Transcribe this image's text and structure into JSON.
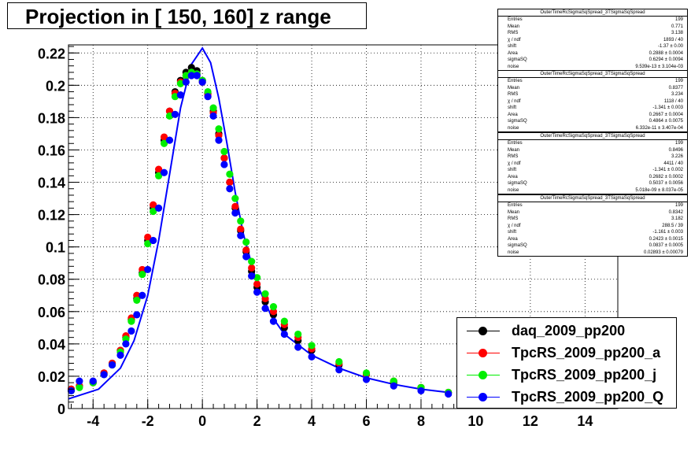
{
  "title": "Projection in [ 150, 160] z range",
  "chart_data": {
    "type": "scatter",
    "title": "Projection in [ 150, 160] z range",
    "xlabel": "",
    "ylabel": "",
    "xlim": [
      -4.9,
      15.2
    ],
    "ylim": [
      0,
      0.225
    ],
    "x_ticks": [
      -4,
      -2,
      0,
      2,
      4,
      6,
      8,
      10,
      12,
      14
    ],
    "y_ticks": [
      0,
      0.02,
      0.04,
      0.06,
      0.08,
      0.1,
      0.12,
      0.14,
      0.16,
      0.18,
      0.2,
      0.22
    ],
    "y_tick_labels": [
      "0",
      "0.02",
      "0.04",
      "0.06",
      "0.08",
      "0.1",
      "0.12",
      "0.14",
      "0.16",
      "0.18",
      "0.2",
      "0.22"
    ],
    "grid": true,
    "legend_position": "bottom-right",
    "series": [
      {
        "name": "daq_2009_pp200",
        "color": "#000000",
        "points": [
          [
            -4.8,
            0.012
          ],
          [
            -4.5,
            0.014
          ],
          [
            -4.0,
            0.016
          ],
          [
            -3.6,
            0.022
          ],
          [
            -3.3,
            0.028
          ],
          [
            -3.0,
            0.036
          ],
          [
            -2.8,
            0.044
          ],
          [
            -2.6,
            0.055
          ],
          [
            -2.4,
            0.068
          ],
          [
            -2.2,
            0.084
          ],
          [
            -2.0,
            0.104
          ],
          [
            -1.8,
            0.124
          ],
          [
            -1.6,
            0.146
          ],
          [
            -1.4,
            0.166
          ],
          [
            -1.2,
            0.184
          ],
          [
            -1.0,
            0.196
          ],
          [
            -0.8,
            0.203
          ],
          [
            -0.6,
            0.208
          ],
          [
            -0.4,
            0.211
          ],
          [
            -0.2,
            0.209
          ],
          [
            0.0,
            0.203
          ],
          [
            0.2,
            0.195
          ],
          [
            0.4,
            0.184
          ],
          [
            0.6,
            0.17
          ],
          [
            0.8,
            0.155
          ],
          [
            1.0,
            0.14
          ],
          [
            1.2,
            0.124
          ],
          [
            1.4,
            0.11
          ],
          [
            1.6,
            0.097
          ],
          [
            1.8,
            0.085
          ],
          [
            2.0,
            0.075
          ],
          [
            2.3,
            0.066
          ],
          [
            2.6,
            0.058
          ],
          [
            3.0,
            0.05
          ],
          [
            3.5,
            0.042
          ],
          [
            4.0,
            0.036
          ],
          [
            5.0,
            0.027
          ],
          [
            6.0,
            0.021
          ],
          [
            7.0,
            0.016
          ],
          [
            8.0,
            0.013
          ],
          [
            9.0,
            0.01
          ]
        ]
      },
      {
        "name": "TpcRS_2009_pp200_a",
        "color": "#ff0000",
        "points": [
          [
            -4.8,
            0.012
          ],
          [
            -4.5,
            0.014
          ],
          [
            -4.0,
            0.016
          ],
          [
            -3.6,
            0.022
          ],
          [
            -3.3,
            0.028
          ],
          [
            -3.0,
            0.036
          ],
          [
            -2.8,
            0.045
          ],
          [
            -2.6,
            0.056
          ],
          [
            -2.4,
            0.07
          ],
          [
            -2.2,
            0.086
          ],
          [
            -2.0,
            0.106
          ],
          [
            -1.8,
            0.126
          ],
          [
            -1.6,
            0.148
          ],
          [
            -1.4,
            0.168
          ],
          [
            -1.2,
            0.184
          ],
          [
            -1.0,
            0.195
          ],
          [
            -0.8,
            0.202
          ],
          [
            -0.6,
            0.206
          ],
          [
            -0.4,
            0.208
          ],
          [
            -0.2,
            0.207
          ],
          [
            0.0,
            0.202
          ],
          [
            0.2,
            0.194
          ],
          [
            0.4,
            0.183
          ],
          [
            0.6,
            0.169
          ],
          [
            0.8,
            0.155
          ],
          [
            1.0,
            0.14
          ],
          [
            1.2,
            0.125
          ],
          [
            1.4,
            0.111
          ],
          [
            1.6,
            0.098
          ],
          [
            1.8,
            0.087
          ],
          [
            2.0,
            0.077
          ],
          [
            2.3,
            0.068
          ],
          [
            2.6,
            0.06
          ],
          [
            3.0,
            0.052
          ],
          [
            3.5,
            0.044
          ],
          [
            4.0,
            0.037
          ],
          [
            5.0,
            0.028
          ],
          [
            6.0,
            0.021
          ],
          [
            7.0,
            0.017
          ],
          [
            8.0,
            0.013
          ],
          [
            9.0,
            0.01
          ]
        ]
      },
      {
        "name": "TpcRS_2009_pp200_j",
        "color": "#00ee00",
        "points": [
          [
            -4.8,
            0.011
          ],
          [
            -4.5,
            0.013
          ],
          [
            -4.0,
            0.016
          ],
          [
            -3.6,
            0.021
          ],
          [
            -3.3,
            0.027
          ],
          [
            -3.0,
            0.035
          ],
          [
            -2.8,
            0.043
          ],
          [
            -2.6,
            0.054
          ],
          [
            -2.4,
            0.067
          ],
          [
            -2.2,
            0.083
          ],
          [
            -2.0,
            0.102
          ],
          [
            -1.8,
            0.122
          ],
          [
            -1.6,
            0.144
          ],
          [
            -1.4,
            0.164
          ],
          [
            -1.2,
            0.181
          ],
          [
            -1.0,
            0.193
          ],
          [
            -0.8,
            0.201
          ],
          [
            -0.6,
            0.206
          ],
          [
            -0.4,
            0.208
          ],
          [
            -0.2,
            0.207
          ],
          [
            0.0,
            0.203
          ],
          [
            0.2,
            0.196
          ],
          [
            0.4,
            0.186
          ],
          [
            0.6,
            0.173
          ],
          [
            0.8,
            0.159
          ],
          [
            1.0,
            0.145
          ],
          [
            1.2,
            0.13
          ],
          [
            1.4,
            0.116
          ],
          [
            1.6,
            0.103
          ],
          [
            1.8,
            0.091
          ],
          [
            2.0,
            0.081
          ],
          [
            2.3,
            0.071
          ],
          [
            2.6,
            0.063
          ],
          [
            3.0,
            0.054
          ],
          [
            3.5,
            0.046
          ],
          [
            4.0,
            0.039
          ],
          [
            5.0,
            0.029
          ],
          [
            6.0,
            0.022
          ],
          [
            7.0,
            0.017
          ],
          [
            8.0,
            0.013
          ],
          [
            9.0,
            0.01
          ]
        ]
      },
      {
        "name": "TpcRS_2009_pp200_Q",
        "color": "#0000ff",
        "points": [
          [
            -4.8,
            0.011
          ],
          [
            -4.5,
            0.017
          ],
          [
            -4.0,
            0.017
          ],
          [
            -3.6,
            0.021
          ],
          [
            -3.3,
            0.027
          ],
          [
            -3.0,
            0.033
          ],
          [
            -2.8,
            0.04
          ],
          [
            -2.6,
            0.048
          ],
          [
            -2.4,
            0.058
          ],
          [
            -2.2,
            0.07
          ],
          [
            -2.0,
            0.086
          ],
          [
            -1.8,
            0.104
          ],
          [
            -1.6,
            0.124
          ],
          [
            -1.4,
            0.146
          ],
          [
            -1.2,
            0.166
          ],
          [
            -1.0,
            0.182
          ],
          [
            -0.8,
            0.194
          ],
          [
            -0.6,
            0.202
          ],
          [
            -0.4,
            0.206
          ],
          [
            -0.2,
            0.206
          ],
          [
            0.0,
            0.202
          ],
          [
            0.2,
            0.193
          ],
          [
            0.4,
            0.181
          ],
          [
            0.6,
            0.166
          ],
          [
            0.8,
            0.151
          ],
          [
            1.0,
            0.136
          ],
          [
            1.2,
            0.121
          ],
          [
            1.4,
            0.107
          ],
          [
            1.6,
            0.094
          ],
          [
            1.8,
            0.082
          ],
          [
            2.0,
            0.072
          ],
          [
            2.3,
            0.062
          ],
          [
            2.6,
            0.054
          ],
          [
            3.0,
            0.046
          ],
          [
            3.5,
            0.038
          ],
          [
            4.0,
            0.032
          ],
          [
            5.0,
            0.024
          ],
          [
            6.0,
            0.018
          ],
          [
            7.0,
            0.014
          ],
          [
            8.0,
            0.011
          ],
          [
            9.0,
            0.009
          ]
        ]
      }
    ],
    "fit_curve": {
      "color": "#0000ff",
      "points": [
        [
          -4.9,
          0.006
        ],
        [
          -3.8,
          0.012
        ],
        [
          -3.0,
          0.025
        ],
        [
          -2.5,
          0.042
        ],
        [
          -2.0,
          0.07
        ],
        [
          -1.6,
          0.104
        ],
        [
          -1.2,
          0.145
        ],
        [
          -0.8,
          0.186
        ],
        [
          -0.4,
          0.213
        ],
        [
          0.0,
          0.223
        ],
        [
          0.3,
          0.214
        ],
        [
          0.6,
          0.192
        ],
        [
          0.9,
          0.164
        ],
        [
          1.2,
          0.134
        ],
        [
          1.5,
          0.108
        ],
        [
          2.0,
          0.077
        ],
        [
          2.5,
          0.058
        ],
        [
          3.0,
          0.046
        ],
        [
          4.0,
          0.033
        ],
        [
          5.0,
          0.025
        ],
        [
          6.0,
          0.019
        ],
        [
          7.0,
          0.015
        ],
        [
          8.0,
          0.012
        ],
        [
          9.0,
          0.01
        ]
      ]
    }
  },
  "stats": [
    {
      "header": "OuterTimeRcSigmaSqSpread_3TSigmaSqSpread",
      "rows": [
        [
          "Entries",
          "199"
        ],
        [
          "Mean",
          "0.771"
        ],
        [
          "RMS",
          "3.138"
        ],
        [
          "χ  / ndf",
          "1893 / 40"
        ],
        [
          "shift",
          "-1.37 ± 0.00"
        ],
        [
          "Area",
          "0.2888 ± 0.0004"
        ],
        [
          "sigmaSQ",
          "0.6294 ± 0.0094"
        ],
        [
          "noise",
          "9.539e-13 ± 3.104e-03"
        ]
      ]
    },
    {
      "header": "OuterTimeRcSigmaSqSpread_3TSigmaSqSpread",
      "rows": [
        [
          "Entries",
          "199"
        ],
        [
          "Mean",
          "0.8377"
        ],
        [
          "RMS",
          "3.234"
        ],
        [
          "χ  / ndf",
          "1118 / 40"
        ],
        [
          "shift",
          "-1.341 ± 0.003"
        ],
        [
          "Area",
          "0.2667 ± 0.0004"
        ],
        [
          "sigmaSQ",
          "0.4864 ± 0.0075"
        ],
        [
          "noise",
          "6.332e-11 ± 3.407e-04"
        ]
      ]
    },
    {
      "header": "OuterTimeRcSigmaSqSpread_3TSigmaSqSpread",
      "rows": [
        [
          "Entries",
          "199"
        ],
        [
          "Mean",
          "0.8496"
        ],
        [
          "RMS",
          "3.226"
        ],
        [
          "χ  / ndf",
          "4411 / 40"
        ],
        [
          "shift",
          "-1.341 ± 0.002"
        ],
        [
          "Area",
          "0.2682 ± 0.0002"
        ],
        [
          "sigmaSQ",
          "0.5037 ± 0.0056"
        ],
        [
          "noise",
          "5.018e-09 ± 8.037e-05"
        ]
      ]
    },
    {
      "header": "OuterTimeRcSigmaSqSpread_3TSigmaSqSpread",
      "rows": [
        [
          "Entries",
          "199"
        ],
        [
          "Mean",
          "0.8342"
        ],
        [
          "RMS",
          "3.182"
        ],
        [
          "χ  / ndf",
          "288.5 / 39"
        ],
        [
          "shift",
          "-1.161 ± 0.003"
        ],
        [
          "Area",
          "0.2423 ± 0.0015"
        ],
        [
          "sigmaSQ",
          "0.0837 ± 0.0005"
        ],
        [
          "noise",
          "0.02893 ± 0.00079"
        ]
      ]
    }
  ],
  "legend": [
    {
      "label": "daq_2009_pp200",
      "color": "#000000"
    },
    {
      "label": "TpcRS_2009_pp200_a",
      "color": "#ff0000"
    },
    {
      "label": "TpcRS_2009_pp200_j",
      "color": "#00ee00"
    },
    {
      "label": "TpcRS_2009_pp200_Q",
      "color": "#0000ff"
    }
  ]
}
